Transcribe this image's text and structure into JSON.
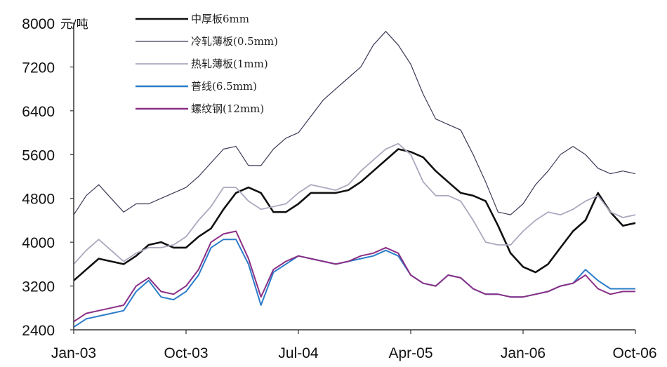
{
  "chart_data": {
    "type": "line",
    "unit_label": "元/吨",
    "x_ticks": [
      "Jan-03",
      "Oct-03",
      "Jul-04",
      "Apr-05",
      "Jan-06",
      "Oct-06"
    ],
    "y_ticks": [
      "8000",
      "7200",
      "6400",
      "5600",
      "4800",
      "4000",
      "3200",
      "2400"
    ],
    "ylim": [
      2400,
      8000
    ],
    "x_range": [
      "2003-01",
      "2006-10"
    ],
    "grid": false,
    "legend_position": "top-center",
    "series": [
      {
        "name": "中厚板6mm",
        "color": "#111111",
        "x": [
          "2003-01",
          "2003-02",
          "2003-03",
          "2003-04",
          "2003-05",
          "2003-06",
          "2003-07",
          "2003-08",
          "2003-09",
          "2003-10",
          "2003-11",
          "2003-12",
          "2004-01",
          "2004-02",
          "2004-03",
          "2004-04",
          "2004-05",
          "2004-06",
          "2004-07",
          "2004-08",
          "2004-09",
          "2004-10",
          "2004-11",
          "2004-12",
          "2005-01",
          "2005-02",
          "2005-03",
          "2005-04",
          "2005-05",
          "2005-06",
          "2005-07",
          "2005-08",
          "2005-09",
          "2005-10",
          "2005-11",
          "2005-12",
          "2006-01",
          "2006-02",
          "2006-03",
          "2006-04",
          "2006-05",
          "2006-06",
          "2006-07",
          "2006-08",
          "2006-09",
          "2006-10"
        ],
        "values": [
          3300,
          3500,
          3700,
          3650,
          3600,
          3750,
          3950,
          4000,
          3900,
          3900,
          4100,
          4250,
          4600,
          4900,
          5000,
          4900,
          4550,
          4550,
          4700,
          4900,
          4900,
          4900,
          4950,
          5100,
          5300,
          5500,
          5700,
          5650,
          5550,
          5300,
          5100,
          4900,
          4850,
          4750,
          4300,
          3800,
          3550,
          3450,
          3600,
          3900,
          4200,
          4400,
          4900,
          4550,
          4300,
          4350
        ]
      },
      {
        "name": "冷轧薄板(0.5mm)",
        "color": "#3a3a55",
        "x": [
          "2003-01",
          "2003-02",
          "2003-03",
          "2003-04",
          "2003-05",
          "2003-06",
          "2003-07",
          "2003-08",
          "2003-09",
          "2003-10",
          "2003-11",
          "2003-12",
          "2004-01",
          "2004-02",
          "2004-03",
          "2004-04",
          "2004-05",
          "2004-06",
          "2004-07",
          "2004-08",
          "2004-09",
          "2004-10",
          "2004-11",
          "2004-12",
          "2005-01",
          "2005-02",
          "2005-03",
          "2005-04",
          "2005-05",
          "2005-06",
          "2005-07",
          "2005-08",
          "2005-09",
          "2005-10",
          "2005-11",
          "2005-12",
          "2006-01",
          "2006-02",
          "2006-03",
          "2006-04",
          "2006-05",
          "2006-06",
          "2006-07",
          "2006-08",
          "2006-09",
          "2006-10"
        ],
        "values": [
          4500,
          4850,
          5050,
          4800,
          4550,
          4700,
          4700,
          4800,
          4900,
          5000,
          5200,
          5450,
          5700,
          5750,
          5400,
          5400,
          5700,
          5900,
          6000,
          6300,
          6600,
          6800,
          7000,
          7200,
          7600,
          7850,
          7600,
          7250,
          6700,
          6250,
          6150,
          6050,
          5600,
          5100,
          4550,
          4500,
          4700,
          5050,
          5300,
          5600,
          5750,
          5600,
          5350,
          5250,
          5300,
          5250
        ]
      },
      {
        "name": "热轧薄板(1mm)",
        "color": "#a9a9bf",
        "x": [
          "2003-01",
          "2003-02",
          "2003-03",
          "2003-04",
          "2003-05",
          "2003-06",
          "2003-07",
          "2003-08",
          "2003-09",
          "2003-10",
          "2003-11",
          "2003-12",
          "2004-01",
          "2004-02",
          "2004-03",
          "2004-04",
          "2004-05",
          "2004-06",
          "2004-07",
          "2004-08",
          "2004-09",
          "2004-10",
          "2004-11",
          "2004-12",
          "2005-01",
          "2005-02",
          "2005-03",
          "2005-04",
          "2005-05",
          "2005-06",
          "2005-07",
          "2005-08",
          "2005-09",
          "2005-10",
          "2005-11",
          "2005-12",
          "2006-01",
          "2006-02",
          "2006-03",
          "2006-04",
          "2006-05",
          "2006-06",
          "2006-07",
          "2006-08",
          "2006-09",
          "2006-10"
        ],
        "values": [
          3600,
          3850,
          4050,
          3850,
          3650,
          3800,
          3900,
          3900,
          3950,
          4100,
          4400,
          4650,
          5000,
          5000,
          4750,
          4600,
          4650,
          4700,
          4900,
          5050,
          5000,
          4950,
          5050,
          5300,
          5500,
          5700,
          5800,
          5600,
          5100,
          4850,
          4850,
          4750,
          4400,
          4000,
          3950,
          3950,
          4200,
          4400,
          4550,
          4500,
          4600,
          4750,
          4850,
          4550,
          4450,
          4500
        ]
      },
      {
        "name": "普线(6.5mm)",
        "color": "#2b7cc9",
        "x": [
          "2003-01",
          "2003-02",
          "2003-03",
          "2003-04",
          "2003-05",
          "2003-06",
          "2003-07",
          "2003-08",
          "2003-09",
          "2003-10",
          "2003-11",
          "2003-12",
          "2004-01",
          "2004-02",
          "2004-03",
          "2004-04",
          "2004-05",
          "2004-06",
          "2004-07",
          "2004-08",
          "2004-09",
          "2004-10",
          "2004-11",
          "2004-12",
          "2005-01",
          "2005-02",
          "2005-03",
          "2005-04",
          "2005-05",
          "2005-06",
          "2005-07",
          "2005-08",
          "2005-09",
          "2005-10",
          "2005-11",
          "2005-12",
          "2006-01",
          "2006-02",
          "2006-03",
          "2006-04",
          "2006-05",
          "2006-06",
          "2006-07",
          "2006-08",
          "2006-09",
          "2006-10"
        ],
        "values": [
          2450,
          2600,
          2650,
          2700,
          2750,
          3100,
          3300,
          3000,
          2950,
          3100,
          3400,
          3900,
          4050,
          4050,
          3600,
          2850,
          3450,
          3600,
          3750,
          3700,
          3650,
          3600,
          3650,
          3700,
          3750,
          3850,
          3750,
          3400,
          3250,
          3200,
          3400,
          3350,
          3150,
          3050,
          3050,
          3000,
          3000,
          3050,
          3100,
          3200,
          3250,
          3500,
          3300,
          3150,
          3150,
          3150
        ]
      },
      {
        "name": "螺纹钢(12mm)",
        "color": "#8a2f86",
        "x": [
          "2003-01",
          "2003-02",
          "2003-03",
          "2003-04",
          "2003-05",
          "2003-06",
          "2003-07",
          "2003-08",
          "2003-09",
          "2003-10",
          "2003-11",
          "2003-12",
          "2004-01",
          "2004-02",
          "2004-03",
          "2004-04",
          "2004-05",
          "2004-06",
          "2004-07",
          "2004-08",
          "2004-09",
          "2004-10",
          "2004-11",
          "2004-12",
          "2005-01",
          "2005-02",
          "2005-03",
          "2005-04",
          "2005-05",
          "2005-06",
          "2005-07",
          "2005-08",
          "2005-09",
          "2005-10",
          "2005-11",
          "2005-12",
          "2006-01",
          "2006-02",
          "2006-03",
          "2006-04",
          "2006-05",
          "2006-06",
          "2006-07",
          "2006-08",
          "2006-09",
          "2006-10"
        ],
        "values": [
          2550,
          2700,
          2750,
          2800,
          2850,
          3200,
          3350,
          3100,
          3050,
          3200,
          3500,
          4000,
          4150,
          4200,
          3700,
          3000,
          3500,
          3650,
          3750,
          3700,
          3650,
          3600,
          3650,
          3750,
          3800,
          3900,
          3800,
          3400,
          3250,
          3200,
          3400,
          3350,
          3150,
          3050,
          3050,
          3000,
          3000,
          3050,
          3100,
          3200,
          3250,
          3400,
          3150,
          3050,
          3100,
          3100
        ]
      }
    ]
  }
}
